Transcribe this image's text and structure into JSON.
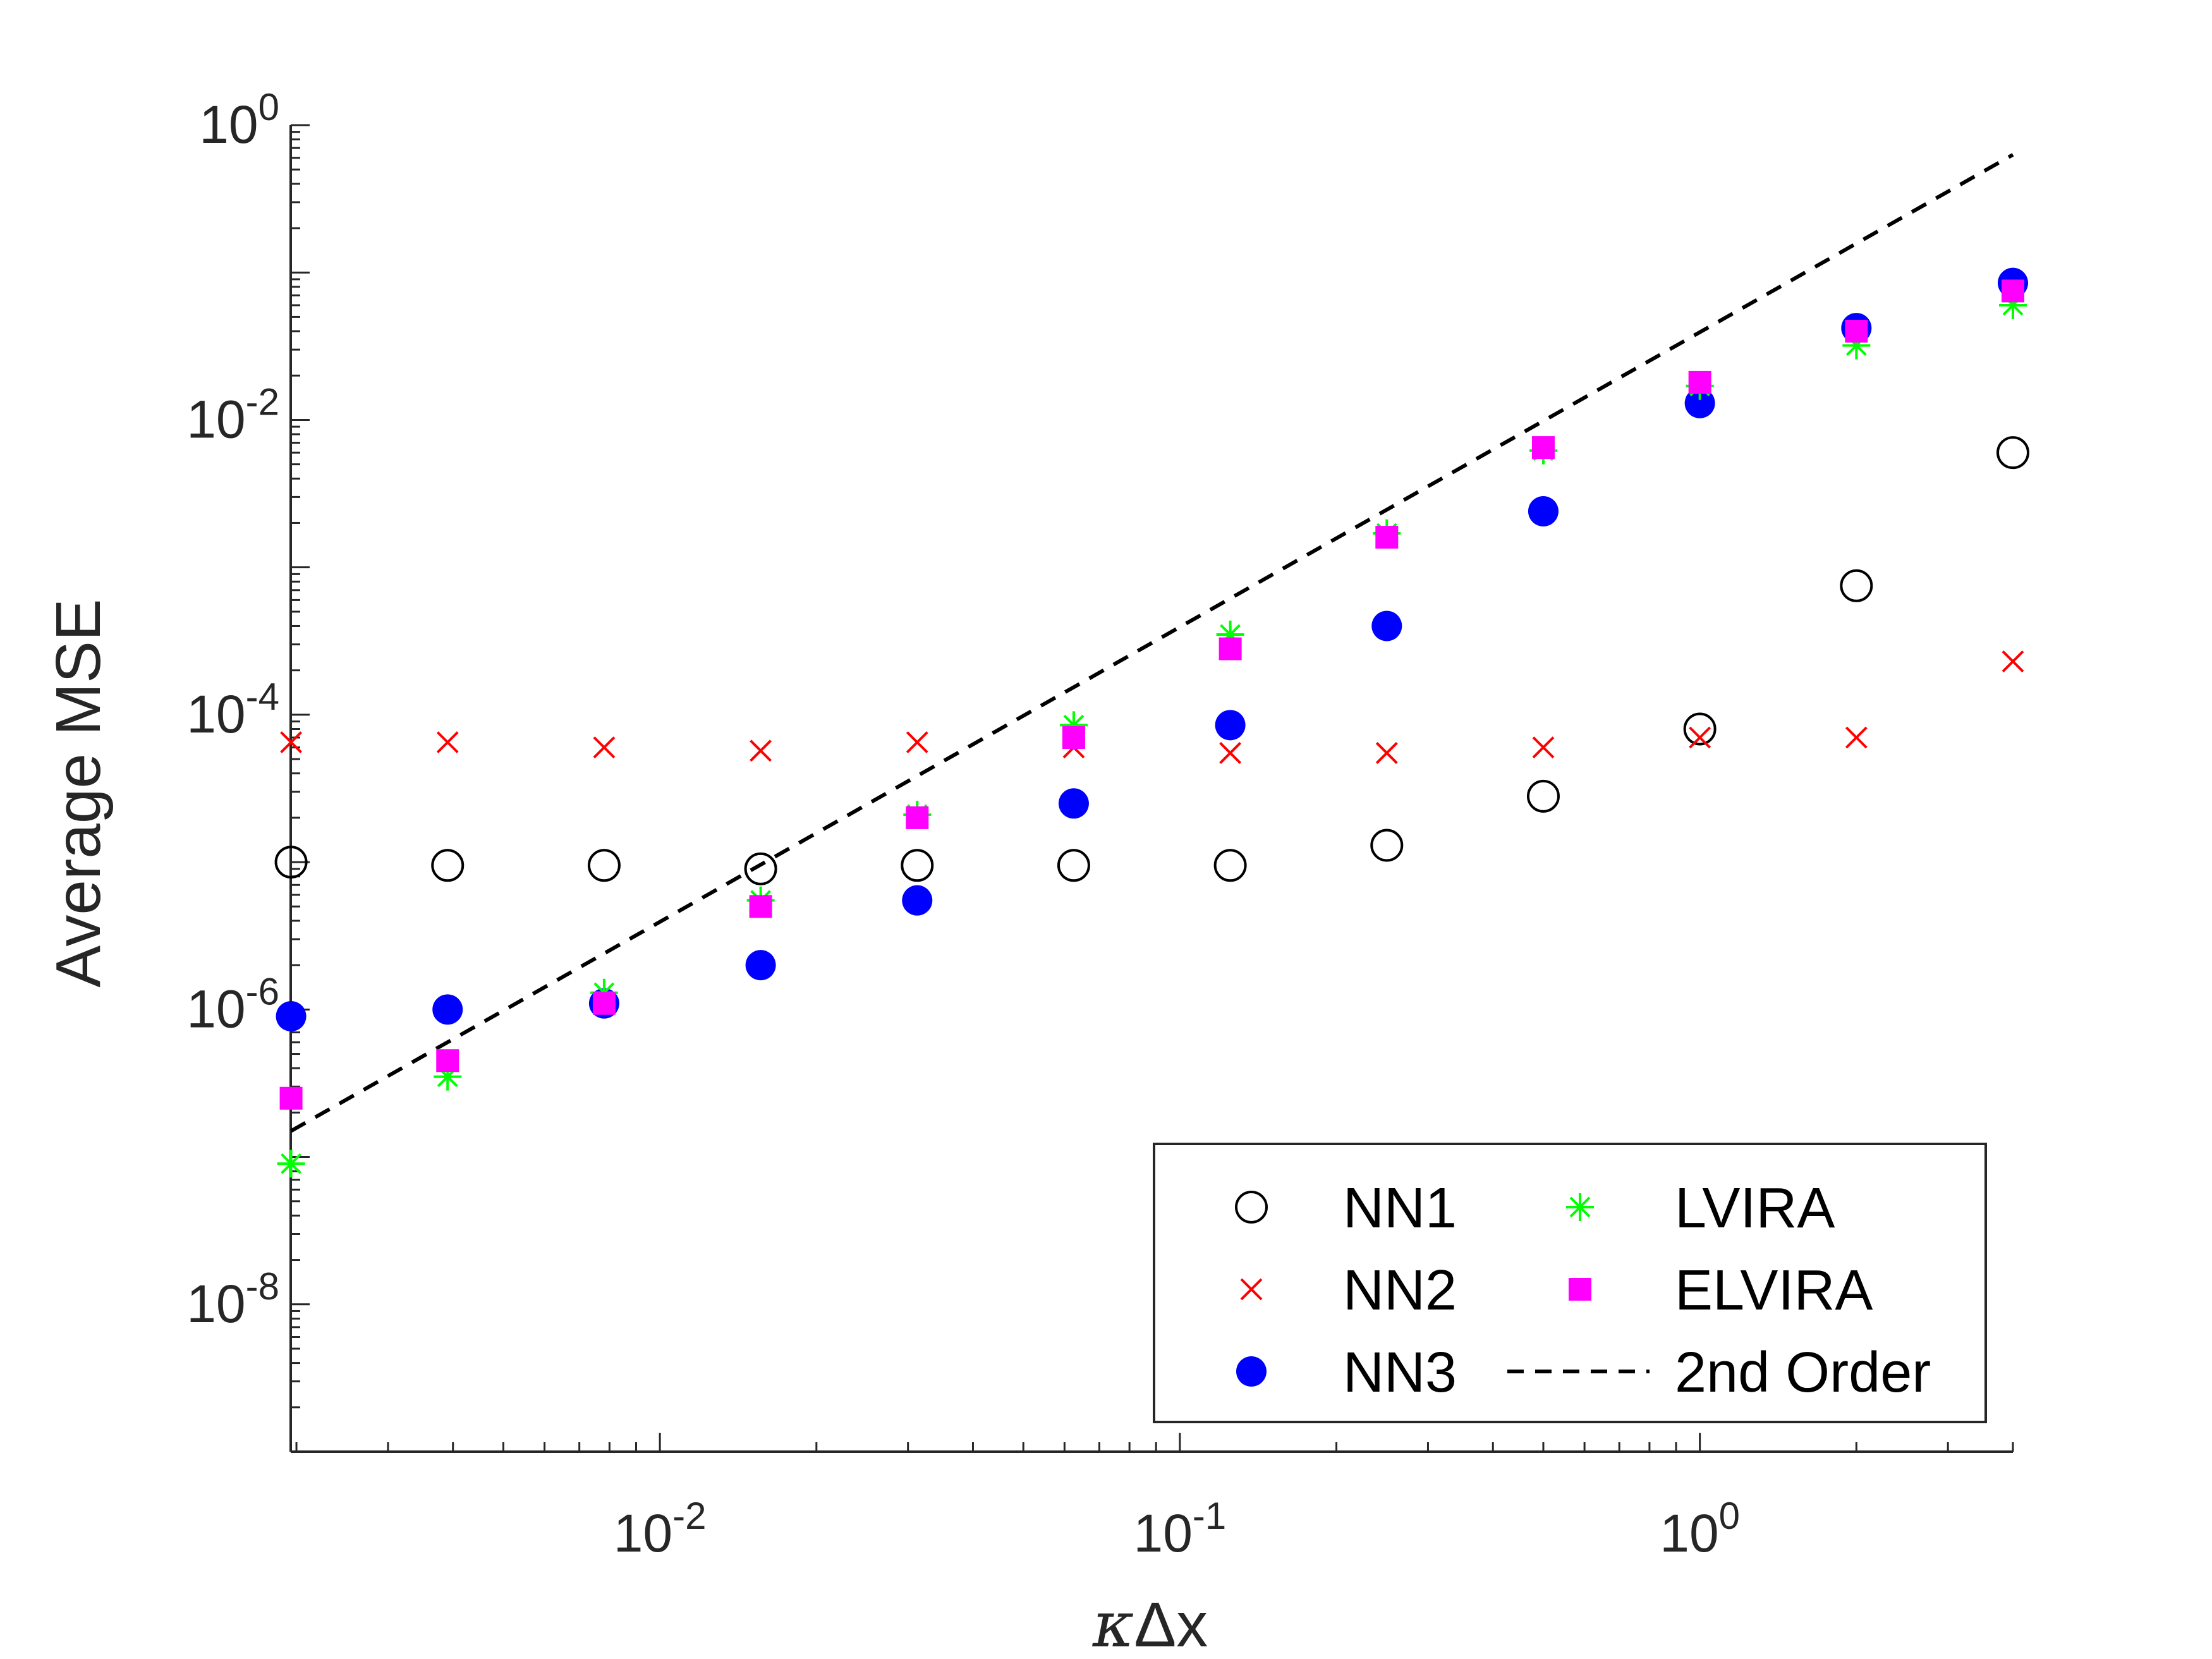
{
  "chart_data": {
    "type": "scatter",
    "x_scale": "log",
    "y_scale": "log",
    "xlabel_symbol": "κ",
    "xlabel_suffix": "Δx",
    "ylabel": "Average MSE",
    "xlim": [
      0.00195,
      4.0
    ],
    "ylim": [
      1e-09,
      1.0
    ],
    "x_ticks": [
      {
        "value": 0.01,
        "base": "10",
        "exp": "-2"
      },
      {
        "value": 0.1,
        "base": "10",
        "exp": "-1"
      },
      {
        "value": 1,
        "base": "10",
        "exp": "0"
      }
    ],
    "y_ticks": [
      {
        "value": 1e-08,
        "base": "10",
        "exp": "-8"
      },
      {
        "value": 1e-06,
        "base": "10",
        "exp": "-6"
      },
      {
        "value": 0.0001,
        "base": "10",
        "exp": "-4"
      },
      {
        "value": 0.01,
        "base": "10",
        "exp": "-2"
      },
      {
        "value": 1,
        "base": "10",
        "exp": "0"
      }
    ],
    "x": [
      0.001953125,
      0.00390625,
      0.0078125,
      0.015625,
      0.03125,
      0.0625,
      0.125,
      0.25,
      0.5,
      1,
      2,
      4
    ],
    "series": [
      {
        "name": "NN1",
        "marker": "circle-open",
        "color": "#000000",
        "values": [
          1e-05,
          9.5e-06,
          9.5e-06,
          9e-06,
          9.5e-06,
          9.5e-06,
          9.5e-06,
          1.3e-05,
          2.8e-05,
          8e-05,
          0.00075,
          0.006
        ]
      },
      {
        "name": "NN2",
        "marker": "x",
        "color": "#ff0000",
        "values": [
          6.5e-05,
          6.5e-05,
          6e-05,
          5.7e-05,
          6.5e-05,
          6e-05,
          5.5e-05,
          5.5e-05,
          6e-05,
          7e-05,
          7e-05,
          0.00023
        ]
      },
      {
        "name": "NN3",
        "marker": "circle-filled",
        "color": "#0000ff",
        "values": [
          9e-07,
          1e-06,
          1.1e-06,
          2e-06,
          5.5e-06,
          2.5e-05,
          8.5e-05,
          0.0004,
          0.0024,
          0.013,
          0.042,
          0.085
        ]
      },
      {
        "name": "LVIRA",
        "marker": "asterisk",
        "color": "#00ff00",
        "values": [
          9e-08,
          3.5e-07,
          1.3e-06,
          5.5e-06,
          2.1e-05,
          8.5e-05,
          0.00035,
          0.0017,
          0.0062,
          0.017,
          0.032,
          0.06
        ]
      },
      {
        "name": "ELVIRA",
        "marker": "square-filled",
        "color": "#ff00ff",
        "values": [
          2.5e-07,
          4.5e-07,
          1.1e-06,
          5e-06,
          2e-05,
          7e-05,
          0.00028,
          0.0016,
          0.0065,
          0.018,
          0.04,
          0.075
        ]
      }
    ],
    "reference_line": {
      "name": "2nd Order",
      "style": "dashed",
      "color": "#000000",
      "x": [
        0.001953125,
        4.0
      ],
      "y": [
        1.5e-07,
        0.63
      ]
    },
    "legend": {
      "placement": "bottom-right",
      "columns": 2,
      "order": [
        "NN1",
        "LVIRA",
        "NN2",
        "ELVIRA",
        "NN3",
        "2nd Order"
      ]
    }
  }
}
